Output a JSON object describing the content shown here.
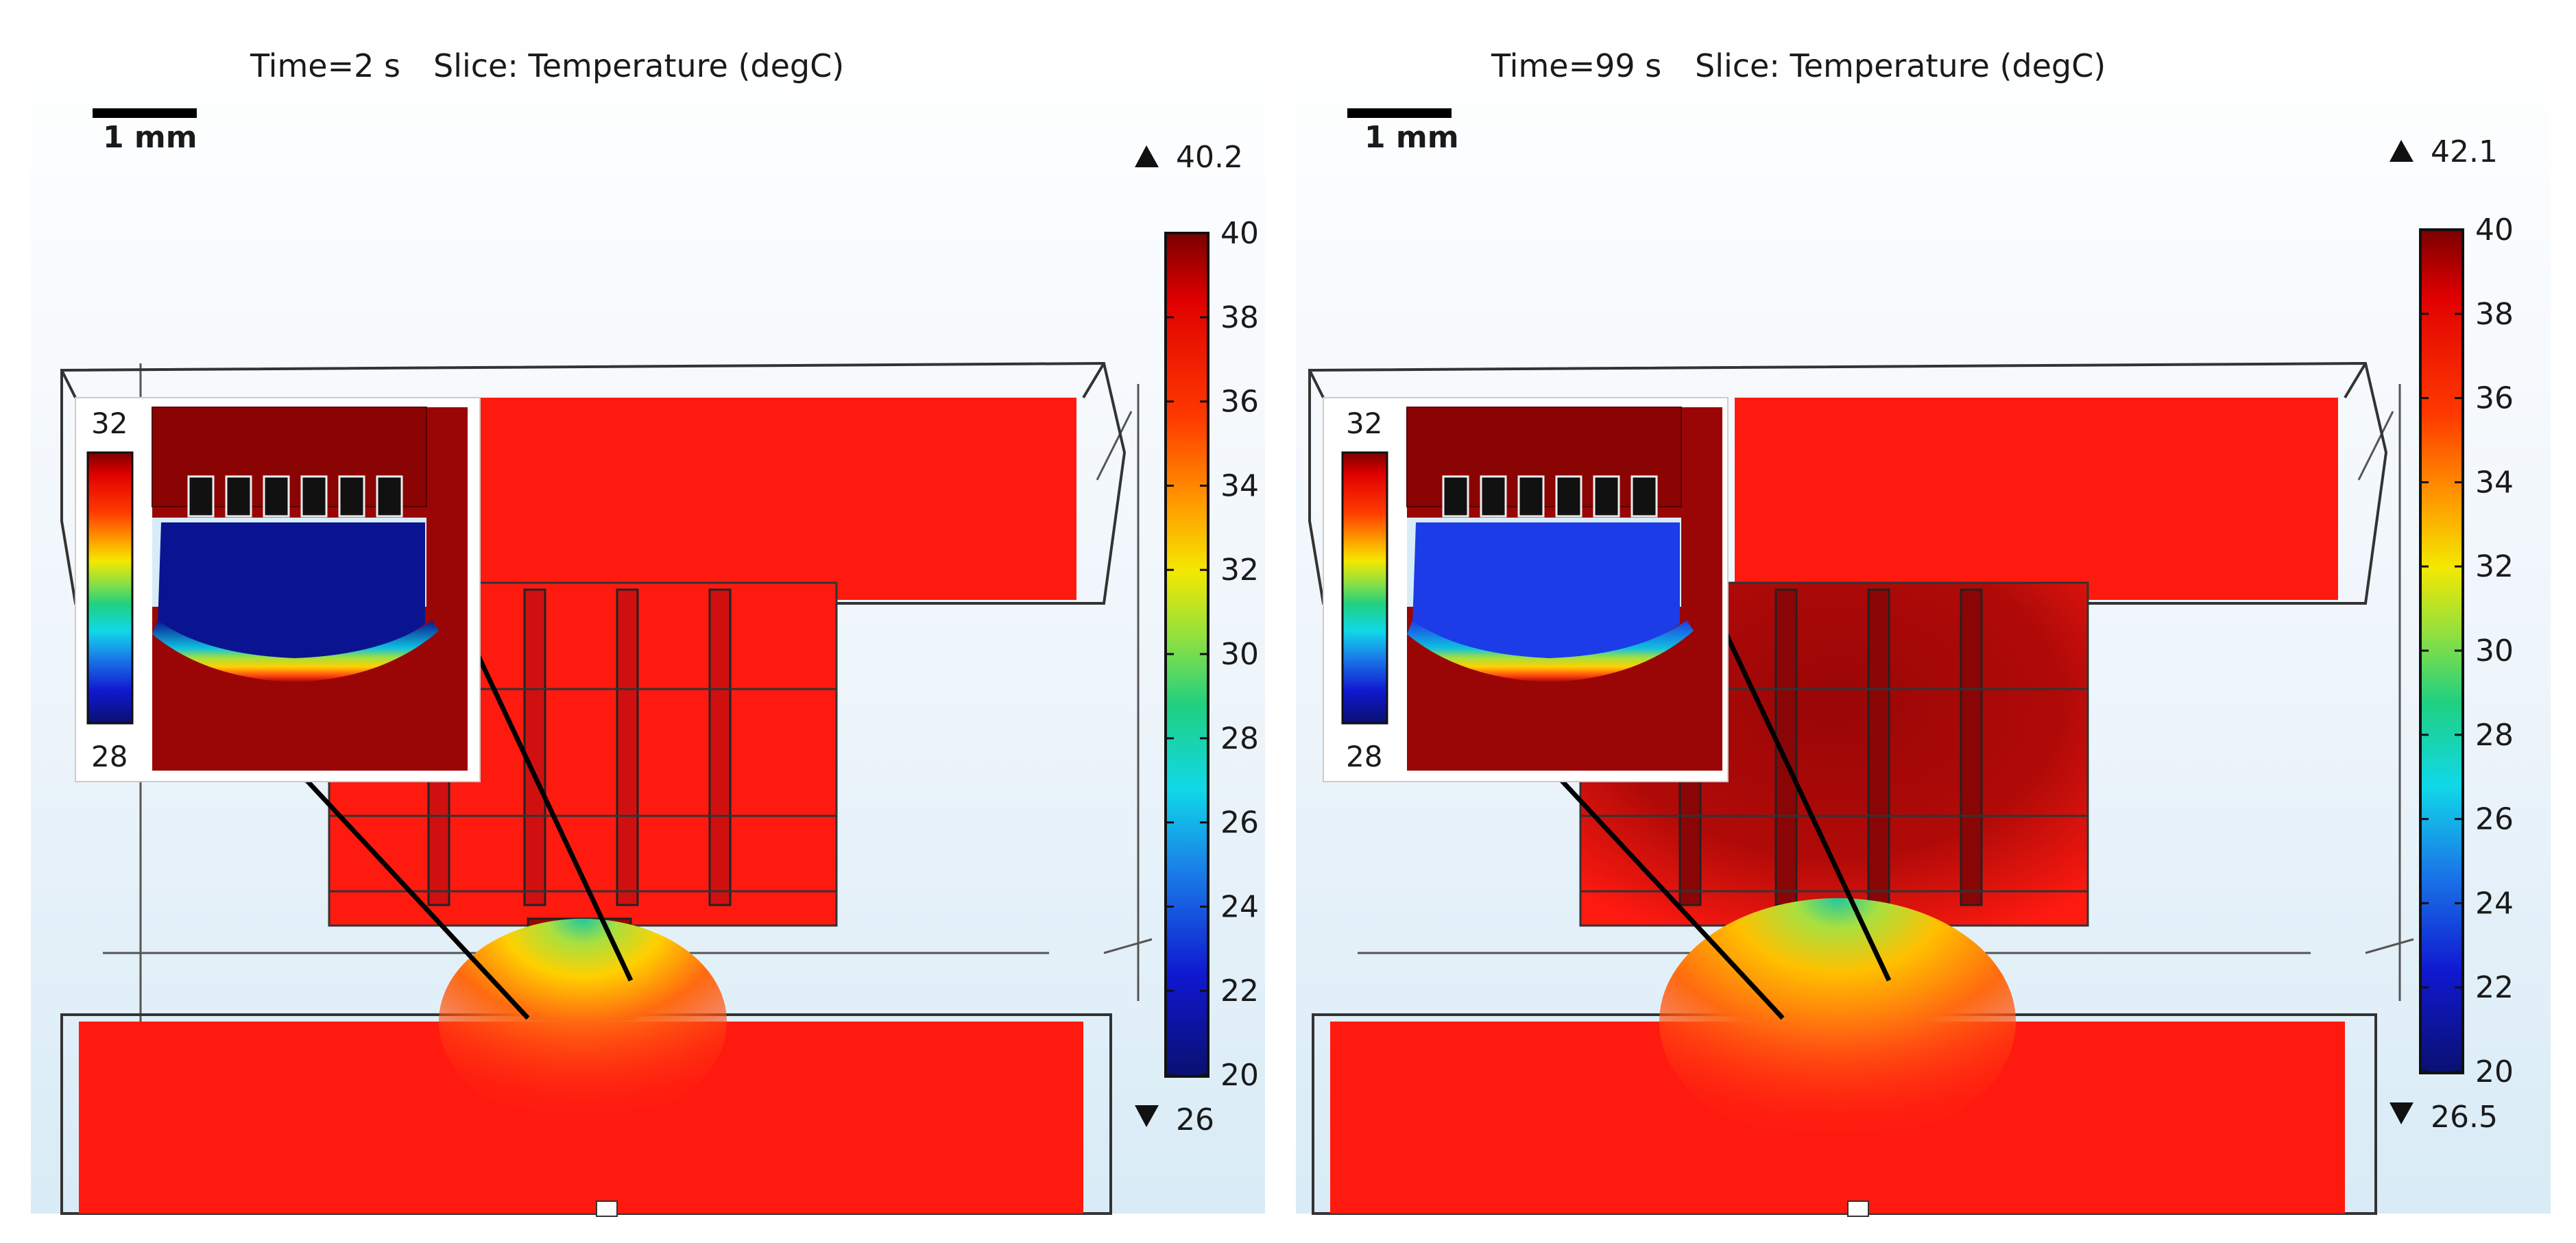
{
  "panels": [
    {
      "time_label": "Time=2 s",
      "slice_label": "Slice: Temperature (degC)",
      "scale_bar_label": "1 mm",
      "max_label": "40.2",
      "min_label": "26",
      "colorbar_ticks": [
        "40",
        "38",
        "36",
        "34",
        "32",
        "30",
        "28",
        "26",
        "24",
        "22",
        "20"
      ],
      "inset_max": "32",
      "inset_min": "28",
      "colors": {
        "hot": "#ff1a10",
        "dark_red": "#9a0606",
        "chip": "#20c4ee",
        "inset_cold": "#0a1490"
      }
    },
    {
      "time_label": "Time=99 s",
      "slice_label": "Slice: Temperature (degC)",
      "scale_bar_label": "1 mm",
      "max_label": "42.1",
      "min_label": "26.5",
      "colorbar_ticks": [
        "40",
        "38",
        "36",
        "34",
        "32",
        "30",
        "28",
        "26",
        "24",
        "22",
        "20"
      ],
      "inset_max": "32",
      "inset_min": "28",
      "colors": {
        "hot": "#ff1a10",
        "dark_red": "#9a0606",
        "chip": "#20c4ee",
        "inset_cold": "#1c3ce8"
      }
    }
  ]
}
